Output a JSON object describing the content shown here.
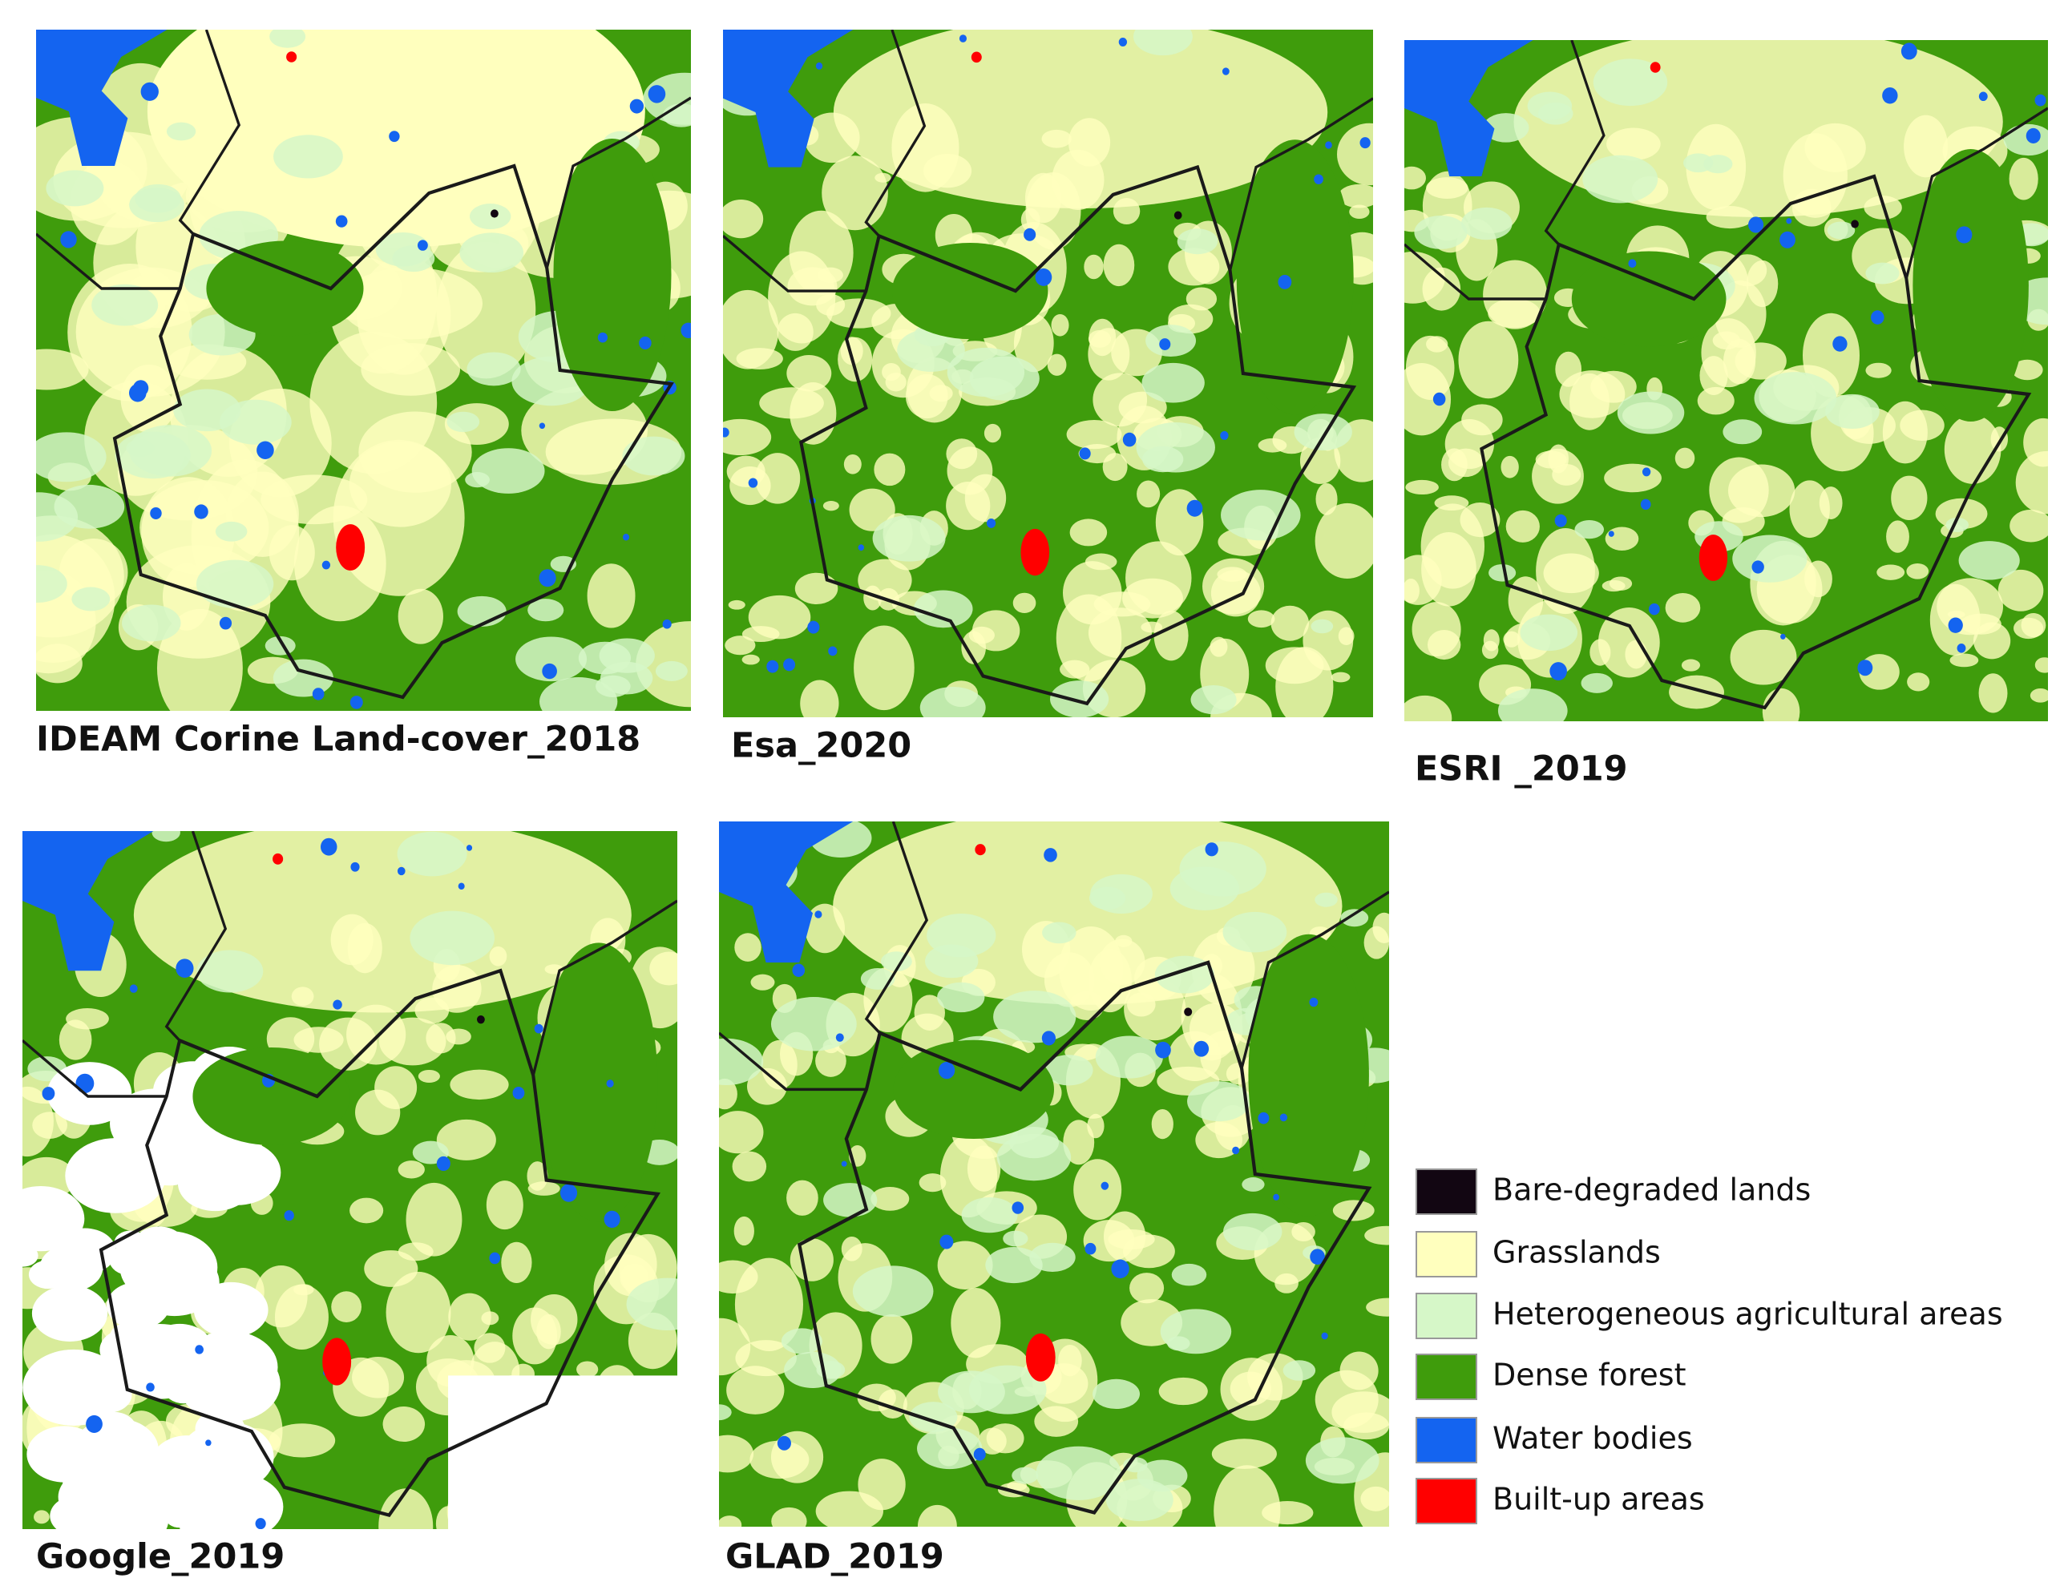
{
  "panels": [
    {
      "label": "IDEAM Corine Land-cover_2018"
    },
    {
      "label": "Esa_2020"
    },
    {
      "label": "ESRI _2019"
    },
    {
      "label": "Google_2019"
    },
    {
      "label": "GLAD_2019"
    }
  ],
  "legend": {
    "items": [
      {
        "label": "Bare-degraded lands",
        "color": "#120612"
      },
      {
        "label": "Grasslands",
        "color": "#ffffbe"
      },
      {
        "label": "Heterogeneous agricultural areas",
        "color": "#d6f7c8"
      },
      {
        "label": "Dense forest",
        "color": "#3f9c0c"
      },
      {
        "label": "Water bodies",
        "color": "#1464f0"
      },
      {
        "label": "Built-up areas",
        "color": "#ff0000"
      }
    ]
  }
}
